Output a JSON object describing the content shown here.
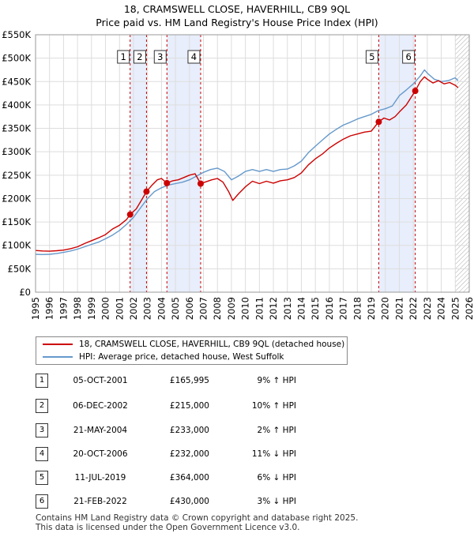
{
  "title_line1": "18, CRAMSWELL CLOSE, HAVERHILL, CB9 9QL",
  "title_line2": "Price paid vs. HM Land Registry's House Price Index (HPI)",
  "colors": {
    "price_line": "#cc0000",
    "hpi_line": "#6699cc",
    "highlight_band": "#e8eefb",
    "marker_line": "#cc0000"
  },
  "chart_data": {
    "type": "line",
    "title": "Price paid vs. HM Land Registry's House Price Index (HPI)",
    "xlim": [
      1995,
      2026
    ],
    "ylim": [
      0,
      550000
    ],
    "x_ticks": [
      1995,
      1996,
      1997,
      1998,
      1999,
      2000,
      2001,
      2002,
      2003,
      2004,
      2005,
      2006,
      2007,
      2008,
      2009,
      2010,
      2011,
      2012,
      2013,
      2014,
      2015,
      2016,
      2017,
      2018,
      2019,
      2020,
      2021,
      2022,
      2023,
      2024,
      2025,
      2026
    ],
    "y_ticks": [
      {
        "value": 0,
        "label": "£0"
      },
      {
        "value": 50000,
        "label": "£50K"
      },
      {
        "value": 100000,
        "label": "£100K"
      },
      {
        "value": 150000,
        "label": "£150K"
      },
      {
        "value": 200000,
        "label": "£200K"
      },
      {
        "value": 250000,
        "label": "£250K"
      },
      {
        "value": 300000,
        "label": "£300K"
      },
      {
        "value": 350000,
        "label": "£350K"
      },
      {
        "value": 400000,
        "label": "£400K"
      },
      {
        "value": 450000,
        "label": "£450K"
      },
      {
        "value": 500000,
        "label": "£500K"
      },
      {
        "value": 550000,
        "label": "£550K"
      }
    ],
    "forecast_start": 2025.0,
    "highlight_bands": [
      [
        2001.76,
        2002.93
      ],
      [
        2004.39,
        2006.8
      ],
      [
        2019.53,
        2022.14
      ]
    ],
    "series": [
      {
        "name": "18, CRAMSWELL CLOSE, HAVERHILL, CB9 9QL (detached house)",
        "color": "#cc0000",
        "points": [
          [
            1995.0,
            89000
          ],
          [
            1995.5,
            88000
          ],
          [
            1996.0,
            87500
          ],
          [
            1996.5,
            88500
          ],
          [
            1997.0,
            90000
          ],
          [
            1997.5,
            93000
          ],
          [
            1998.0,
            97000
          ],
          [
            1998.5,
            104000
          ],
          [
            1999.0,
            110000
          ],
          [
            1999.5,
            116000
          ],
          [
            2000.0,
            123000
          ],
          [
            2000.5,
            135000
          ],
          [
            2001.0,
            143000
          ],
          [
            2001.5,
            155000
          ],
          [
            2001.76,
            165995
          ],
          [
            2002.2,
            178000
          ],
          [
            2002.6,
            198000
          ],
          [
            2002.93,
            215000
          ],
          [
            2003.3,
            228000
          ],
          [
            2003.7,
            240000
          ],
          [
            2004.0,
            243000
          ],
          [
            2004.39,
            233000
          ],
          [
            2004.8,
            238000
          ],
          [
            2005.2,
            240000
          ],
          [
            2005.6,
            245000
          ],
          [
            2006.0,
            250000
          ],
          [
            2006.4,
            253000
          ],
          [
            2006.8,
            232000
          ],
          [
            2007.2,
            236000
          ],
          [
            2007.6,
            240000
          ],
          [
            2008.0,
            243000
          ],
          [
            2008.4,
            235000
          ],
          [
            2008.8,
            215000
          ],
          [
            2009.1,
            196000
          ],
          [
            2009.5,
            210000
          ],
          [
            2010.0,
            225000
          ],
          [
            2010.5,
            237000
          ],
          [
            2011.0,
            232000
          ],
          [
            2011.5,
            237000
          ],
          [
            2012.0,
            233000
          ],
          [
            2012.5,
            238000
          ],
          [
            2013.0,
            240000
          ],
          [
            2013.5,
            245000
          ],
          [
            2014.0,
            255000
          ],
          [
            2014.5,
            272000
          ],
          [
            2015.0,
            285000
          ],
          [
            2015.5,
            295000
          ],
          [
            2016.0,
            308000
          ],
          [
            2016.5,
            318000
          ],
          [
            2017.0,
            327000
          ],
          [
            2017.5,
            334000
          ],
          [
            2018.0,
            338000
          ],
          [
            2018.5,
            342000
          ],
          [
            2019.0,
            344000
          ],
          [
            2019.53,
            364000
          ],
          [
            2019.9,
            372000
          ],
          [
            2020.3,
            368000
          ],
          [
            2020.7,
            375000
          ],
          [
            2021.0,
            385000
          ],
          [
            2021.5,
            400000
          ],
          [
            2022.14,
            430000
          ],
          [
            2022.5,
            450000
          ],
          [
            2022.8,
            460000
          ],
          [
            2023.0,
            455000
          ],
          [
            2023.4,
            447000
          ],
          [
            2023.8,
            452000
          ],
          [
            2024.2,
            445000
          ],
          [
            2024.6,
            448000
          ],
          [
            2025.0,
            442000
          ],
          [
            2025.2,
            437000
          ]
        ]
      },
      {
        "name": "HPI: Average price, detached house, West Suffolk",
        "color": "#6699cc",
        "points": [
          [
            1995.0,
            81000
          ],
          [
            1995.5,
            80500
          ],
          [
            1996.0,
            81000
          ],
          [
            1996.5,
            82500
          ],
          [
            1997.0,
            85000
          ],
          [
            1997.5,
            88000
          ],
          [
            1998.0,
            92000
          ],
          [
            1998.5,
            97000
          ],
          [
            1999.0,
            102000
          ],
          [
            1999.5,
            107000
          ],
          [
            2000.0,
            114000
          ],
          [
            2000.5,
            122000
          ],
          [
            2001.0,
            132000
          ],
          [
            2001.5,
            145000
          ],
          [
            2002.0,
            160000
          ],
          [
            2002.5,
            180000
          ],
          [
            2003.0,
            200000
          ],
          [
            2003.5,
            215000
          ],
          [
            2004.0,
            223000
          ],
          [
            2004.5,
            229000
          ],
          [
            2005.0,
            232000
          ],
          [
            2005.5,
            235000
          ],
          [
            2006.0,
            240000
          ],
          [
            2006.5,
            248000
          ],
          [
            2007.0,
            256000
          ],
          [
            2007.5,
            262000
          ],
          [
            2008.0,
            265000
          ],
          [
            2008.5,
            258000
          ],
          [
            2009.0,
            240000
          ],
          [
            2009.5,
            248000
          ],
          [
            2010.0,
            258000
          ],
          [
            2010.5,
            262000
          ],
          [
            2011.0,
            258000
          ],
          [
            2011.5,
            262000
          ],
          [
            2012.0,
            258000
          ],
          [
            2012.5,
            262000
          ],
          [
            2013.0,
            263000
          ],
          [
            2013.5,
            270000
          ],
          [
            2014.0,
            280000
          ],
          [
            2014.5,
            298000
          ],
          [
            2015.0,
            312000
          ],
          [
            2015.5,
            325000
          ],
          [
            2016.0,
            338000
          ],
          [
            2016.5,
            348000
          ],
          [
            2017.0,
            357000
          ],
          [
            2017.5,
            363000
          ],
          [
            2018.0,
            370000
          ],
          [
            2018.5,
            375000
          ],
          [
            2019.0,
            380000
          ],
          [
            2019.5,
            388000
          ],
          [
            2020.0,
            392000
          ],
          [
            2020.5,
            398000
          ],
          [
            2021.0,
            420000
          ],
          [
            2021.5,
            432000
          ],
          [
            2022.0,
            445000
          ],
          [
            2022.5,
            462000
          ],
          [
            2022.8,
            475000
          ],
          [
            2023.0,
            468000
          ],
          [
            2023.5,
            455000
          ],
          [
            2024.0,
            450000
          ],
          [
            2024.5,
            452000
          ],
          [
            2025.0,
            458000
          ],
          [
            2025.2,
            452000
          ]
        ]
      }
    ],
    "sales": [
      {
        "id": "1",
        "year": 2001.76,
        "price": 165995
      },
      {
        "id": "2",
        "year": 2002.93,
        "price": 215000
      },
      {
        "id": "3",
        "year": 2004.39,
        "price": 233000
      },
      {
        "id": "4",
        "year": 2006.8,
        "price": 232000
      },
      {
        "id": "5",
        "year": 2019.53,
        "price": 364000
      },
      {
        "id": "6",
        "year": 2022.14,
        "price": 430000
      }
    ]
  },
  "legend": {
    "property_label": "18, CRAMSWELL CLOSE, HAVERHILL, CB9 9QL (detached house)",
    "hpi_label": "HPI: Average price, detached house, West Suffolk"
  },
  "table": [
    {
      "num": "1",
      "date": "05-OCT-2001",
      "price": "£165,995",
      "hpi": "9% ↑ HPI"
    },
    {
      "num": "2",
      "date": "06-DEC-2002",
      "price": "£215,000",
      "hpi": "10% ↑ HPI"
    },
    {
      "num": "3",
      "date": "21-MAY-2004",
      "price": "£233,000",
      "hpi": "2% ↑ HPI"
    },
    {
      "num": "4",
      "date": "20-OCT-2006",
      "price": "£232,000",
      "hpi": "11% ↓ HPI"
    },
    {
      "num": "5",
      "date": "11-JUL-2019",
      "price": "£364,000",
      "hpi": "6% ↓ HPI"
    },
    {
      "num": "6",
      "date": "21-FEB-2022",
      "price": "£430,000",
      "hpi": "3% ↓ HPI"
    }
  ],
  "footer_line1": "Contains HM Land Registry data © Crown copyright and database right 2025.",
  "footer_line2": "This data is licensed under the Open Government Licence v3.0."
}
